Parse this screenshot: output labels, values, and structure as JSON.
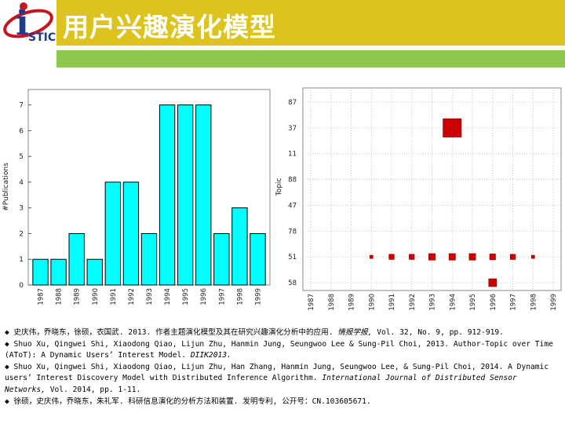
{
  "header": {
    "title": "用户兴趣演化模型",
    "logo_text": "STIC",
    "logo_letter": "i"
  },
  "colors": {
    "header_bg": "#dcc31e",
    "green_bar": "#8cc84b",
    "bar_fill": "#00ffff",
    "square_fill": "#cc0000"
  },
  "chart_data": [
    {
      "type": "bar",
      "title": "",
      "xlabel": "",
      "ylabel": "#Publications",
      "categories": [
        "1987",
        "1988",
        "1989",
        "1990",
        "1991",
        "1992",
        "1993",
        "1994",
        "1995",
        "1996",
        "1997",
        "1998",
        "1999"
      ],
      "values": [
        1,
        1,
        2,
        1,
        4,
        4,
        2,
        7,
        7,
        7,
        2,
        3,
        2
      ],
      "ylim": [
        0,
        7.6
      ],
      "yticks": [
        "0",
        "1",
        "2",
        "3",
        "4",
        "5",
        "6",
        "7"
      ],
      "grid": false
    },
    {
      "type": "scatter",
      "title": "",
      "xlabel": "",
      "ylabel": "Topic",
      "categories": [
        "1987",
        "1988",
        "1989",
        "1990",
        "1991",
        "1992",
        "1993",
        "1994",
        "1995",
        "1996",
        "1997",
        "1998",
        "1999"
      ],
      "topics": [
        "87",
        "37",
        "11",
        "88",
        "47",
        "78",
        "51",
        "58"
      ],
      "points": [
        {
          "x": "1994",
          "topic": "37",
          "size": 5
        },
        {
          "x": "1990",
          "topic": "51",
          "size": 0.4
        },
        {
          "x": "1991",
          "topic": "51",
          "size": 1
        },
        {
          "x": "1992",
          "topic": "51",
          "size": 1
        },
        {
          "x": "1993",
          "topic": "51",
          "size": 1.4
        },
        {
          "x": "1994",
          "topic": "51",
          "size": 1.4
        },
        {
          "x": "1995",
          "topic": "51",
          "size": 1.4
        },
        {
          "x": "1996",
          "topic": "51",
          "size": 1.2
        },
        {
          "x": "1997",
          "topic": "51",
          "size": 1
        },
        {
          "x": "1998",
          "topic": "51",
          "size": 0.4
        },
        {
          "x": "1996",
          "topic": "58",
          "size": 1.8
        }
      ],
      "grid": true
    }
  ],
  "references": [
    {
      "plain1": "◆ 史庆伟，乔晓东，徐硕，衣国武. 2013. 作者主题演化模型及其在研究兴趣演化分析中的应用. ",
      "italic": "情报学报,",
      "plain2": " Vol. 32, No. 9, pp. 912-919."
    },
    {
      "plain1": "◆ Shuo Xu, Qingwei Shi, Xiaodong Qiao, Lijun Zhu, Hanmin Jung, Seungwoo Lee & Sung-Pil Choi, 2013. Author-Topic over Time (AToT): A Dynamic Users’ Interest Model. ",
      "italic": "DIIK2013.",
      "plain2": ""
    },
    {
      "plain1": "◆ Shuo Xu, Qingwei Shi, Xiaodong Qiao, Lijun Zhu, Han Zhang, Hanmin Jung, Seungwoo Lee, & Sung-Pil Choi, 2014. A Dynamic users’ Interest Discovery Model with Distributed Inference Algorithm. ",
      "italic": "International Journal of Distributed Sensor Networks,",
      "plain2": " Vol. 2014, pp. 1-11."
    },
    {
      "plain1": "◆ 徐硕，史庆伟，乔晓东，朱礼军. 科研信息演化的分析方法和装置. 发明专利, 公开号：CN.103605671.",
      "italic": "",
      "plain2": ""
    }
  ]
}
